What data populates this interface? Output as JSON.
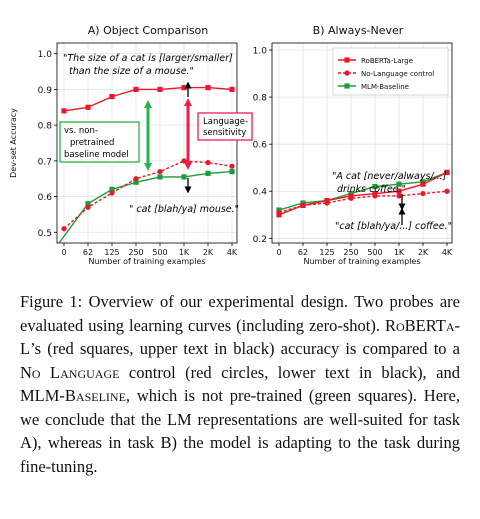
{
  "chart_data": [
    {
      "panel": "A",
      "type": "line",
      "title": "A) Object Comparison",
      "xlabel": "Number of training examples",
      "ylabel": "Dev-set Accuracy",
      "x": [
        "0",
        "62",
        "125",
        "250",
        "500",
        "1K",
        "2K",
        "4K"
      ],
      "y_ticks": [
        "0.5",
        "0.6",
        "0.7",
        "0.8",
        "0.9",
        "1.0"
      ],
      "ylim": [
        0.47,
        1.03
      ],
      "grid": true,
      "series": [
        {
          "key": "roberta",
          "values": [
            0.84,
            0.85,
            0.88,
            0.9,
            0.9,
            0.905,
            0.905,
            0.9
          ]
        },
        {
          "key": "nolang",
          "values": [
            0.51,
            0.57,
            0.61,
            0.65,
            0.67,
            0.7,
            0.695,
            0.685
          ]
        },
        {
          "key": "mlm",
          "values": [
            0.44,
            0.58,
            0.62,
            0.64,
            0.655,
            0.655,
            0.665,
            0.67
          ]
        }
      ],
      "annotations": {
        "upper_quote_1": "\"The size of a cat is [larger/smaller]",
        "upper_quote_2": "than the size of a mouse.\"",
        "lower_quote": "\" cat [blah/ya] mouse.\"",
        "baseline_note_1": "vs. non-",
        "baseline_note_2": "pretrained",
        "baseline_note_3": "baseline model",
        "sensitivity_note_1": "Language-",
        "sensitivity_note_2": "sensitivity"
      }
    },
    {
      "panel": "B",
      "type": "line",
      "title": "B) Always-Never",
      "xlabel": "Number of training examples",
      "x": [
        "0",
        "62",
        "125",
        "250",
        "500",
        "1K",
        "2K",
        "4K"
      ],
      "y_ticks": [
        "0.2",
        "0.4",
        "0.6",
        "0.8",
        "1.0"
      ],
      "ylim": [
        0.18,
        1.03
      ],
      "grid": true,
      "legend_placement": "top-right",
      "series": [
        {
          "key": "roberta",
          "name": "RoBERTa-Large",
          "values": [
            0.3,
            0.34,
            0.36,
            0.38,
            0.39,
            0.4,
            0.43,
            0.48
          ]
        },
        {
          "key": "nolang",
          "name": "No-Language control",
          "values": [
            0.31,
            0.34,
            0.35,
            0.37,
            0.38,
            0.38,
            0.39,
            0.4
          ]
        },
        {
          "key": "mlm",
          "name": "MLM-Baseline",
          "values": [
            0.32,
            0.35,
            0.36,
            0.39,
            0.42,
            0.43,
            0.44,
            0.48
          ]
        }
      ],
      "annotations": {
        "upper_quote_1": "\"A cat [never/always/...]",
        "upper_quote_2": "drinks coffee.\"",
        "lower_quote": "\"cat [blah/ya/...] coffee.\""
      }
    }
  ],
  "colors": {
    "roberta": "#e8192c",
    "nolang": "#e8192c",
    "mlm": "#1a9e3c",
    "accent_green": "#2ab34a",
    "accent_red": "#ee1e4a"
  },
  "caption": {
    "p1": "Figure 1: Overview of our experimental design. Two probes are evaluated using learning curves (including zero-shot). ",
    "roberta": "RoBERTa-L",
    "p2": "’s (red squares, upper text in black) accuracy is compared to a ",
    "nolang": "No Language",
    "p3": " control (red circles, lower text in black), and ",
    "mlm": "MLM-Baseline",
    "p4": ", which is not pre-trained (green squares). Here, we conclude that the LM representations are well-suited for task A), whereas in task B) the model is adapting to the task during fine-tuning."
  }
}
